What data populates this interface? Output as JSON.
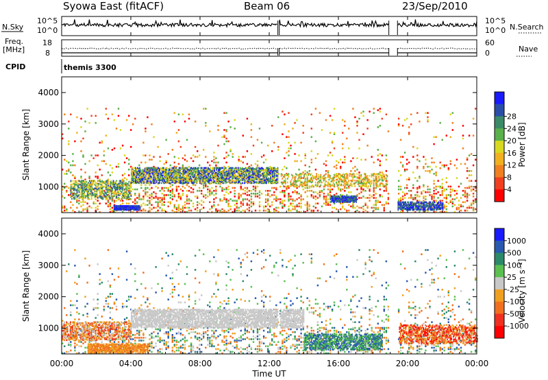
{
  "header": {
    "station": "Syowa East (fitACF)",
    "beam": "Beam 06",
    "date": "23/Sep/2010"
  },
  "noise_panel": {
    "left_label": "N.Sky",
    "right_label": "N.Search",
    "left_top": "10^5",
    "left_bottom": "10^0",
    "right_top": "10^5",
    "right_bottom": "10^0"
  },
  "freq_panel": {
    "left_label_1": "Freq.",
    "left_label_2": "[MHz]",
    "right_label": "Nave",
    "left_top": "18",
    "left_bottom": "8",
    "right_top": "60",
    "right_bottom": "0"
  },
  "cpid": {
    "label": "CPID",
    "value": "themis 3300"
  },
  "xaxis": {
    "title": "Time UT",
    "ticks": [
      "00:00",
      "04:00",
      "08:00",
      "12:00",
      "16:00",
      "20:00",
      "00:00"
    ]
  },
  "range_axis": {
    "title": "Slant Range [km]",
    "ticks": [
      "1000",
      "2000",
      "3000",
      "4000"
    ]
  },
  "power_colorbar": {
    "title": "Power [dB]",
    "labels": [
      "4",
      "8",
      "12",
      "16",
      "20",
      "24",
      "28"
    ],
    "colors": [
      "#1a1aff",
      "#2a4ea8",
      "#3a8a68",
      "#5ab04a",
      "#d8d820",
      "#f0b020",
      "#f08020",
      "#f04020",
      "#ff0000"
    ]
  },
  "velocity_colorbar": {
    "title": "Velocity [m s⁻¹]",
    "labels": [
      "1000",
      "500",
      "100",
      "25",
      "-25",
      "-100",
      "-500",
      "-1000"
    ],
    "colors": [
      "#1a1aff",
      "#2a5ab0",
      "#2a8a6a",
      "#5ac050",
      "#c8c8c8",
      "#f0a020",
      "#f07020",
      "#f03020",
      "#ff0000"
    ]
  },
  "chart_data": {
    "type": "heatmap",
    "time_range_ut": [
      "00:00",
      "24:00"
    ],
    "range_ylim_km": [
      180,
      4500
    ],
    "data_gaps_ut": [
      [
        "12:30",
        "12:35"
      ],
      [
        "18:55",
        "19:25"
      ]
    ],
    "noise_ylim": [
      "10^0",
      "10^5"
    ],
    "freq_ylim_mhz": [
      8,
      18
    ],
    "nave_ylim": [
      0,
      60
    ],
    "power_scale_db": [
      0,
      30
    ],
    "velocity_scale_ms": [
      -1000,
      1000
    ],
    "features": [
      {
        "panel": "power",
        "start_ut": "04:00",
        "end_ut": "12:30",
        "range_km": [
          1100,
          1600
        ],
        "power_db": [
          20,
          28
        ]
      },
      {
        "panel": "power",
        "start_ut": "03:00",
        "end_ut": "04:30",
        "range_km": [
          250,
          400
        ],
        "power_db": [
          28,
          30
        ]
      },
      {
        "panel": "power",
        "start_ut": "15:30",
        "end_ut": "17:00",
        "range_km": [
          500,
          700
        ],
        "power_db": [
          24,
          30
        ]
      },
      {
        "panel": "power",
        "start_ut": "19:00",
        "end_ut": "22:00",
        "range_km": [
          250,
          500
        ],
        "power_db": [
          24,
          30
        ]
      },
      {
        "panel": "velocity",
        "start_ut": "04:00",
        "end_ut": "14:00",
        "range_km": [
          1000,
          1600
        ],
        "velocity_ms": [
          -25,
          25
        ]
      },
      {
        "panel": "velocity",
        "start_ut": "01:30",
        "end_ut": "05:00",
        "range_km": [
          200,
          500
        ],
        "velocity_ms": [
          -500,
          -100
        ]
      },
      {
        "panel": "velocity",
        "start_ut": "14:00",
        "end_ut": "18:30",
        "range_km": [
          300,
          800
        ],
        "velocity_ms": [
          25,
          500
        ]
      }
    ]
  }
}
